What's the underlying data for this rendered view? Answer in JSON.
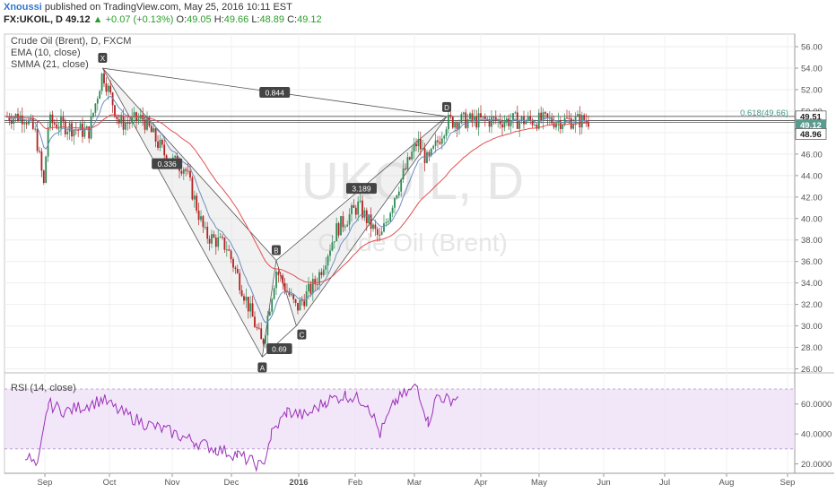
{
  "header": {
    "author": "Xnoussi",
    "published_text": "published on TradingView.com, May 25, 2016 10:11 EST",
    "symbol": "FX:UKOIL, D",
    "last": "49.12",
    "change": "+0.07 (+0.13%)",
    "ohlc": {
      "o_label": "O:",
      "o": "49.05",
      "h_label": "H:",
      "h": "49.66",
      "l_label": "L:",
      "l": "48.89",
      "c_label": "C:",
      "c": "49.12"
    }
  },
  "overlays": {
    "instrument": "Crude Oil (Brent), D, FXCM",
    "ema": "EMA (10, close)",
    "smma": "SMMA (21, close)",
    "rsi": "RSI (14, close)"
  },
  "watermark": {
    "main": "UKOIL, D",
    "sub": "Crude Oil (Brent)"
  },
  "price_tags": {
    "high": "49.51",
    "last": "49.12",
    "low": "48.96",
    "fib_text": "0.618(49.66)"
  },
  "colors": {
    "up_candle": "#2e8b57",
    "down_candle": "#b22222",
    "ema": "#6c8ebf",
    "smma": "#e05050",
    "rsi_line": "#9b30b8",
    "rsi_band": "#ecdcf7",
    "pattern_fill": "#d8d8d8",
    "pattern_line": "#555555",
    "fib": "#4a9a8a"
  },
  "chart_data": {
    "type": "candlestick",
    "y_axis_ticks": [
      "56.00",
      "54.00",
      "52.00",
      "50.00",
      "48.00",
      "46.00",
      "44.00",
      "42.00",
      "40.00",
      "38.00",
      "36.00",
      "34.00",
      "32.00",
      "30.00",
      "28.00",
      "26.00"
    ],
    "ylim": [
      26,
      56
    ],
    "x_axis_ticks": [
      "Sep",
      "Oct",
      "Nov",
      "Dec",
      "2016",
      "Feb",
      "Mar",
      "Apr",
      "May",
      "Jun",
      "Jul",
      "Aug",
      "Sep"
    ],
    "harmonic_pattern": {
      "points": [
        {
          "label": "X",
          "date": "2015-10-09",
          "price": 54.0
        },
        {
          "label": "A",
          "date": "2016-01-20",
          "price": 27.1
        },
        {
          "label": "B",
          "date": "2016-01-29",
          "price": 36.1
        },
        {
          "label": "C",
          "date": "2016-02-11",
          "price": 30.0
        },
        {
          "label": "D",
          "date": "2016-05-18",
          "price": 49.51
        }
      ],
      "ratios": [
        {
          "label": "0.844",
          "between": "X-D"
        },
        {
          "label": "0.336",
          "between": "X-B"
        },
        {
          "label": "0.69",
          "between": "A-C"
        },
        {
          "label": "3.189",
          "between": "B-D"
        }
      ]
    },
    "horizontal_levels": [
      49.51,
      49.12,
      48.96
    ],
    "fib_level": {
      "ratio": 0.618,
      "price": 49.66
    },
    "rsi": {
      "title": "RSI (14, close)",
      "ticks": [
        "60.0000",
        "40.0000",
        "20.0000"
      ],
      "ylim": [
        10,
        80
      ],
      "band": [
        30,
        70
      ],
      "dates": [
        "2015-08-20",
        "2015-08-28",
        "2015-09-04",
        "2015-09-15",
        "2015-10-01",
        "2015-10-09",
        "2015-10-20",
        "2015-11-05",
        "2015-11-20",
        "2015-12-07",
        "2015-12-21",
        "2016-01-04",
        "2016-01-12",
        "2016-01-20",
        "2016-01-26",
        "2016-02-05",
        "2016-02-17",
        "2016-03-01",
        "2016-03-14",
        "2016-03-28",
        "2016-04-05",
        "2016-04-15",
        "2016-04-29",
        "2016-05-06",
        "2016-05-12",
        "2016-05-18",
        "2016-05-25"
      ],
      "values": [
        27,
        17,
        60,
        55,
        60,
        63,
        55,
        47,
        42,
        35,
        30,
        26,
        22,
        18,
        40,
        55,
        52,
        62,
        66,
        61,
        40,
        62,
        72,
        48,
        66,
        63,
        64
      ]
    }
  }
}
